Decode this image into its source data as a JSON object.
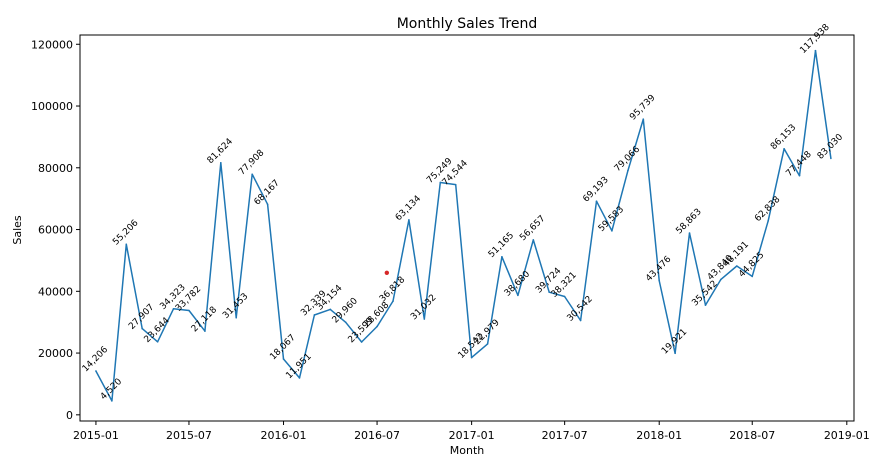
{
  "chart_data": {
    "type": "line",
    "title": "Monthly Sales Trend",
    "xlabel": "Month",
    "ylabel": "Sales",
    "xlim": [
      "2014-12-01",
      "2019-01-15"
    ],
    "ylim": [
      -2000,
      123000
    ],
    "x_ticks": [
      "2015-01",
      "2015-07",
      "2016-01",
      "2016-07",
      "2017-01",
      "2017-07",
      "2018-01",
      "2018-07",
      "2019-01"
    ],
    "y_ticks": [
      0,
      20000,
      40000,
      60000,
      80000,
      100000,
      120000
    ],
    "grid": false,
    "legend": "none",
    "series_color": "#1f77b4",
    "series": [
      {
        "x": [
          "2015-01",
          "2015-02",
          "2015-03",
          "2015-04",
          "2015-05",
          "2015-06",
          "2015-07",
          "2015-08",
          "2015-09",
          "2015-10",
          "2015-11",
          "2015-12",
          "2016-01",
          "2016-02",
          "2016-03",
          "2016-04",
          "2016-05",
          "2016-06",
          "2016-07",
          "2016-08",
          "2016-09",
          "2016-10",
          "2016-11",
          "2016-12",
          "2017-01",
          "2017-02",
          "2017-03",
          "2017-04",
          "2017-05",
          "2017-06",
          "2017-07",
          "2017-08",
          "2017-09",
          "2017-10",
          "2017-11",
          "2017-12",
          "2018-01",
          "2018-02",
          "2018-03",
          "2018-04",
          "2018-05",
          "2018-06",
          "2018-07",
          "2018-08",
          "2018-09",
          "2018-10",
          "2018-11",
          "2018-12"
        ],
        "values": [
          14206,
          4520,
          55206,
          27907,
          23644,
          34323,
          33782,
          27118,
          81624,
          31453,
          77908,
          68167,
          18067,
          11951,
          32339,
          34154,
          29960,
          23599,
          28608,
          36818,
          63134,
          31032,
          75249,
          74544,
          18542,
          22979,
          51165,
          38680,
          56657,
          39724,
          38321,
          30542,
          69193,
          59583,
          79066,
          95739,
          43476,
          19921,
          58863,
          35542,
          43840,
          48191,
          44825,
          62838,
          86153,
          77448,
          117938,
          83030
        ],
        "labels": [
          "14,206",
          "4,520",
          "55,206",
          "27,907",
          "23,644",
          "34,323",
          "33,782",
          "27,118",
          "81,624",
          "31,453",
          "77,908",
          "68,167",
          "18,067",
          "11,951",
          "32,339",
          "34,154",
          "29,960",
          "23,599",
          "28,608",
          "36,818",
          "63,134",
          "31,032",
          "75,249",
          "74,544",
          "18,542",
          "22,979",
          "51,165",
          "38,680",
          "56,657",
          "39,724",
          "38,321",
          "30,542",
          "69,193",
          "59,583",
          "79,066",
          "95,739",
          "43,476",
          "19,921",
          "58,863",
          "35,542",
          "43,840",
          "48,191",
          "44,825",
          "62,838",
          "86,153",
          "77,448",
          "117,938",
          "83,030"
        ]
      }
    ],
    "annotations": [
      {
        "type": "marker",
        "x": "2016-07-20",
        "y": 46000,
        "color": "#d62728"
      }
    ]
  }
}
